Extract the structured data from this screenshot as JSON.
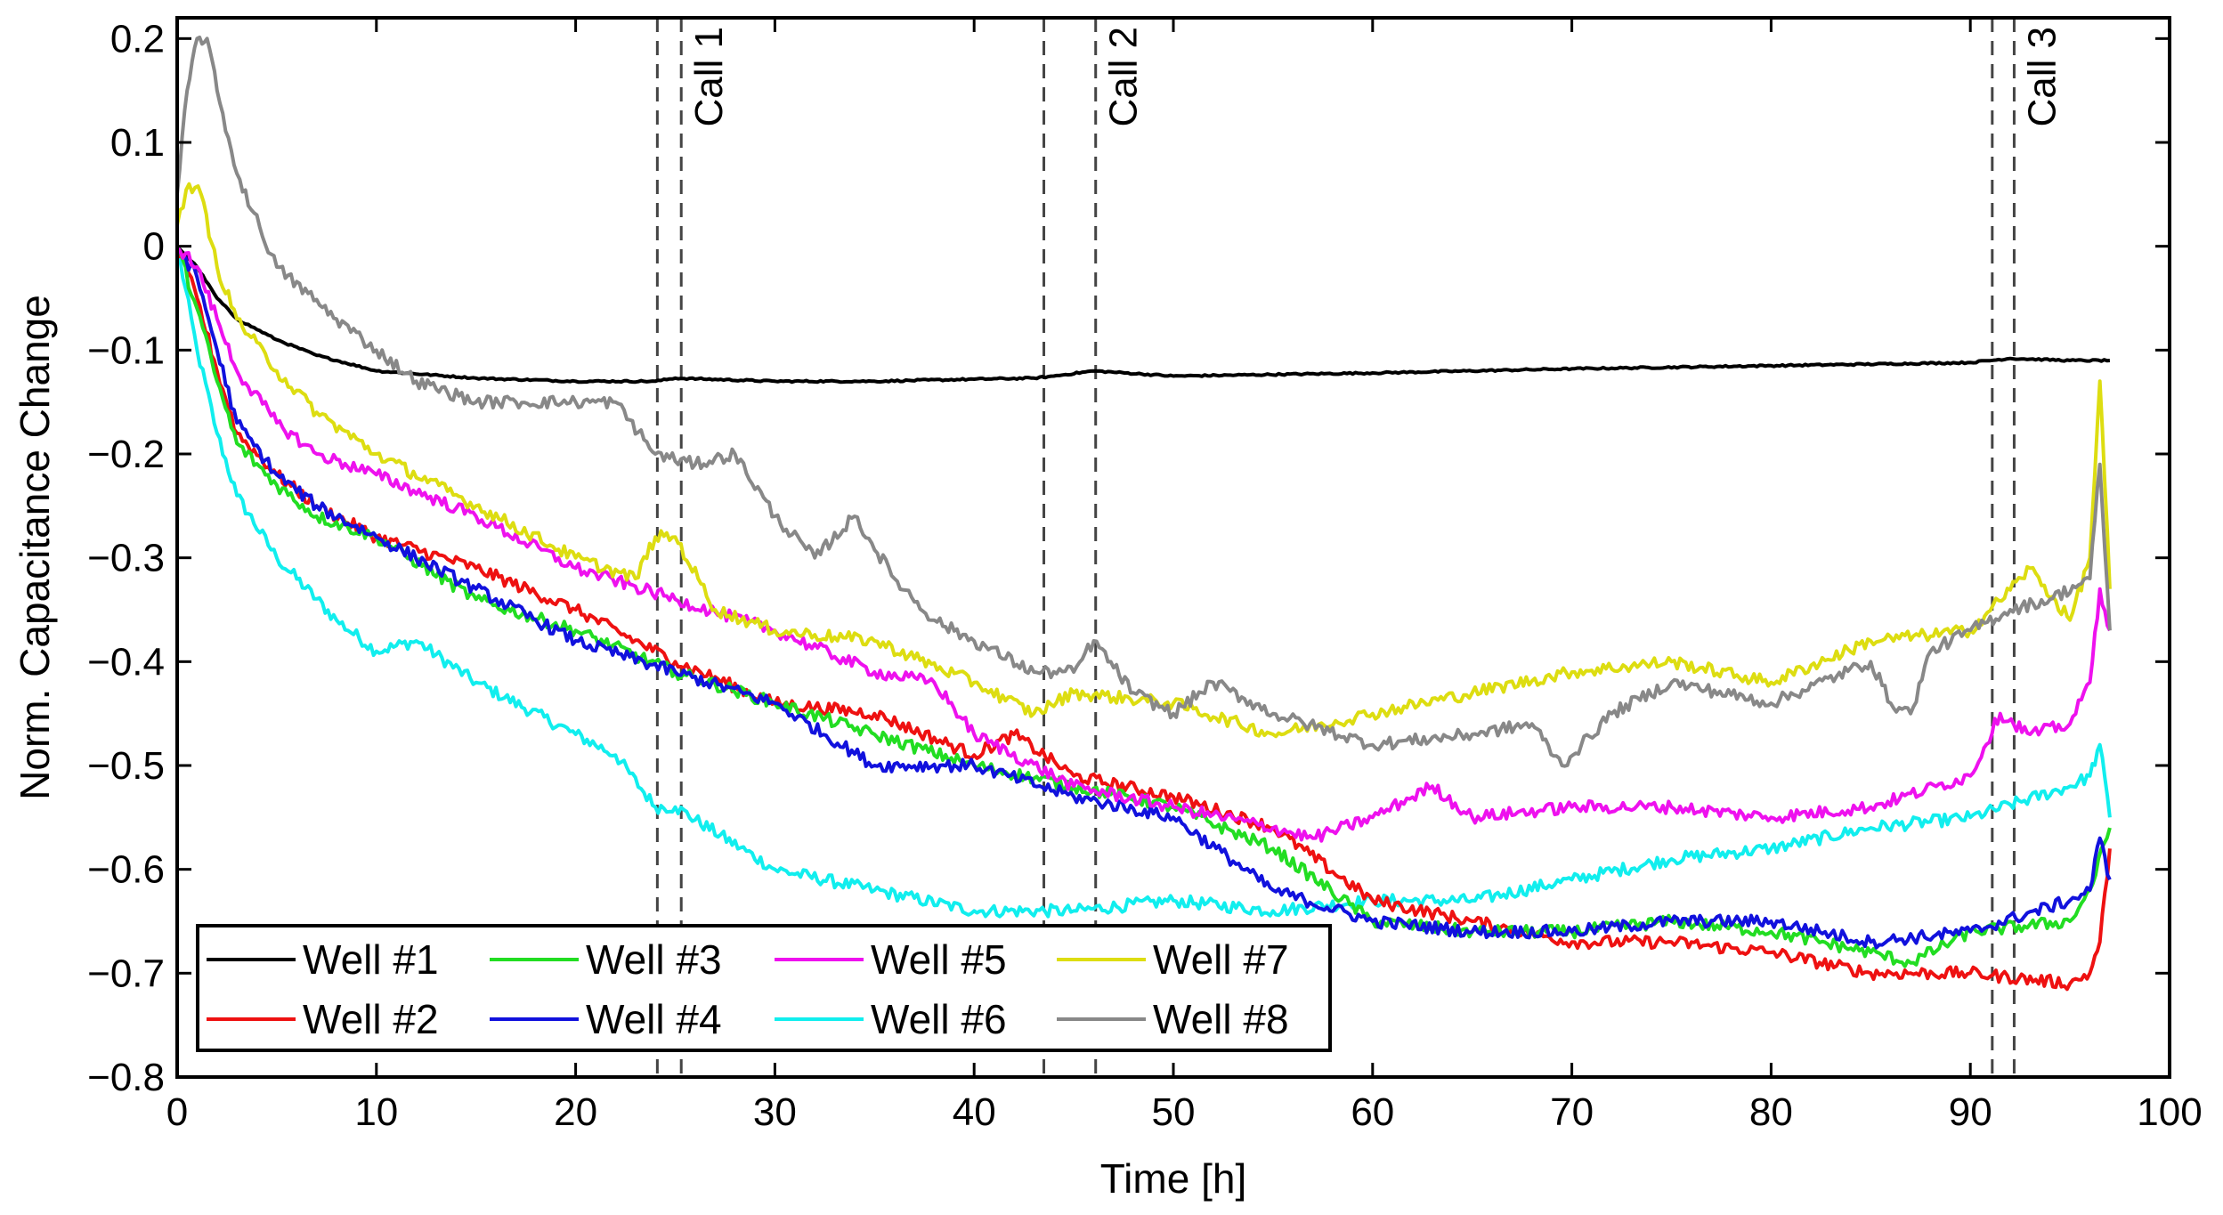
{
  "chart_data": {
    "type": "line",
    "title": "",
    "xlabel": "Time [h]",
    "ylabel": "Norm. Capacitance Change",
    "xlim": [
      0,
      100
    ],
    "ylim": [
      -0.8,
      0.22
    ],
    "xticks": [
      0,
      10,
      20,
      30,
      40,
      50,
      60,
      70,
      80,
      90,
      100
    ],
    "yticks": [
      0.2,
      0.1,
      0,
      -0.1,
      -0.2,
      -0.3,
      -0.4,
      -0.5,
      -0.6,
      -0.7,
      -0.8
    ],
    "xtick_labels": [
      "0",
      "10",
      "20",
      "30",
      "40",
      "50",
      "60",
      "70",
      "80",
      "90",
      "100"
    ],
    "ytick_labels": [
      "0.2",
      "0.1",
      "0",
      "−0.1",
      "−0.2",
      "−0.3",
      "−0.4",
      "−0.5",
      "−0.6",
      "−0.7",
      "−0.8"
    ],
    "grid": false,
    "legend_position": "bottom-left",
    "legend_columns": 4,
    "calls": [
      {
        "label": "Call 1",
        "lines": [
          24.1,
          25.3
        ]
      },
      {
        "label": "Call 2",
        "lines": [
          43.5,
          46.1
        ]
      },
      {
        "label": "Call 3",
        "lines": [
          91.1,
          92.2
        ]
      }
    ],
    "series": [
      {
        "name": "Well #1",
        "color": "#000000",
        "x": [
          0,
          1,
          2,
          3,
          5,
          7,
          10,
          15,
          20,
          24,
          25,
          30,
          35,
          40,
          43,
          44,
          46,
          50,
          60,
          70,
          80,
          90,
          92,
          95,
          97
        ],
        "y": [
          0,
          -0.02,
          -0.05,
          -0.07,
          -0.09,
          -0.105,
          -0.12,
          -0.127,
          -0.13,
          -0.13,
          -0.127,
          -0.13,
          -0.13,
          -0.128,
          -0.127,
          -0.125,
          -0.12,
          -0.125,
          -0.122,
          -0.118,
          -0.115,
          -0.112,
          -0.108,
          -0.11,
          -0.11
        ]
      },
      {
        "name": "Well #2",
        "color": "#ee1111",
        "x": [
          0,
          1,
          2,
          3,
          5,
          7,
          10,
          15,
          20,
          25,
          30,
          35,
          40,
          42,
          45,
          50,
          55,
          60,
          65,
          70,
          75,
          80,
          85,
          90,
          95,
          96,
          96.5,
          97
        ],
        "y": [
          0,
          -0.05,
          -0.12,
          -0.18,
          -0.22,
          -0.25,
          -0.28,
          -0.31,
          -0.35,
          -0.4,
          -0.44,
          -0.45,
          -0.49,
          -0.47,
          -0.51,
          -0.53,
          -0.56,
          -0.63,
          -0.65,
          -0.67,
          -0.67,
          -0.68,
          -0.7,
          -0.7,
          -0.71,
          -0.7,
          -0.67,
          -0.58
        ]
      },
      {
        "name": "Well #3",
        "color": "#22dd22",
        "x": [
          0,
          1,
          2,
          3,
          5,
          7,
          10,
          15,
          20,
          25,
          30,
          35,
          40,
          45,
          50,
          55,
          60,
          65,
          70,
          75,
          80,
          85,
          87,
          90,
          95,
          96,
          97
        ],
        "y": [
          0,
          -0.06,
          -0.13,
          -0.19,
          -0.23,
          -0.26,
          -0.28,
          -0.34,
          -0.37,
          -0.41,
          -0.44,
          -0.47,
          -0.5,
          -0.52,
          -0.54,
          -0.58,
          -0.65,
          -0.66,
          -0.66,
          -0.65,
          -0.66,
          -0.68,
          -0.69,
          -0.66,
          -0.65,
          -0.62,
          -0.56
        ]
      },
      {
        "name": "Well #4",
        "color": "#1111dd",
        "x": [
          0,
          1,
          2,
          3,
          5,
          7,
          10,
          15,
          20,
          25,
          30,
          35,
          40,
          45,
          50,
          55,
          60,
          65,
          70,
          75,
          80,
          85,
          90,
          95,
          96,
          96.5,
          97
        ],
        "y": [
          0,
          -0.03,
          -0.1,
          -0.17,
          -0.22,
          -0.25,
          -0.28,
          -0.33,
          -0.38,
          -0.41,
          -0.44,
          -0.5,
          -0.5,
          -0.53,
          -0.55,
          -0.62,
          -0.65,
          -0.66,
          -0.66,
          -0.65,
          -0.65,
          -0.67,
          -0.66,
          -0.63,
          -0.62,
          -0.57,
          -0.61
        ]
      },
      {
        "name": "Well #5",
        "color": "#ee11ee",
        "x": [
          0,
          1,
          2,
          3,
          5,
          7,
          10,
          15,
          20,
          25,
          30,
          35,
          38,
          40,
          45,
          50,
          55,
          57,
          60,
          63,
          65,
          70,
          75,
          80,
          85,
          90,
          91.5,
          93,
          95,
          96,
          96.5,
          97
        ],
        "y": [
          0,
          -0.02,
          -0.07,
          -0.12,
          -0.17,
          -0.2,
          -0.22,
          -0.26,
          -0.31,
          -0.34,
          -0.37,
          -0.41,
          -0.42,
          -0.47,
          -0.52,
          -0.54,
          -0.56,
          -0.57,
          -0.55,
          -0.52,
          -0.55,
          -0.54,
          -0.54,
          -0.55,
          -0.54,
          -0.51,
          -0.45,
          -0.47,
          -0.46,
          -0.42,
          -0.33,
          -0.37
        ]
      },
      {
        "name": "Well #6",
        "color": "#11eeee",
        "x": [
          0,
          1,
          2,
          3,
          5,
          8,
          10,
          12,
          15,
          20,
          22,
          24,
          25,
          30,
          35,
          40,
          45,
          50,
          55,
          60,
          65,
          70,
          75,
          80,
          85,
          90,
          95,
          96,
          96.5,
          97
        ],
        "y": [
          0,
          -0.1,
          -0.18,
          -0.24,
          -0.3,
          -0.36,
          -0.39,
          -0.38,
          -0.42,
          -0.47,
          -0.49,
          -0.54,
          -0.54,
          -0.6,
          -0.62,
          -0.64,
          -0.64,
          -0.63,
          -0.64,
          -0.63,
          -0.63,
          -0.61,
          -0.59,
          -0.58,
          -0.56,
          -0.55,
          -0.52,
          -0.51,
          -0.48,
          -0.55
        ]
      },
      {
        "name": "Well #7",
        "color": "#dddd11",
        "x": [
          0,
          0.6,
          1.2,
          2,
          3,
          5,
          7,
          10,
          15,
          20,
          23,
          24,
          25,
          27,
          30,
          35,
          40,
          43,
          45,
          50,
          55,
          60,
          65,
          70,
          75,
          80,
          85,
          90,
          93,
          95,
          96,
          96.5,
          97
        ],
        "y": [
          0.02,
          0.06,
          0.05,
          -0.02,
          -0.07,
          -0.12,
          -0.16,
          -0.2,
          -0.25,
          -0.3,
          -0.32,
          -0.28,
          -0.28,
          -0.35,
          -0.37,
          -0.38,
          -0.42,
          -0.45,
          -0.43,
          -0.44,
          -0.47,
          -0.45,
          -0.43,
          -0.41,
          -0.4,
          -0.42,
          -0.38,
          -0.37,
          -0.31,
          -0.36,
          -0.3,
          -0.13,
          -0.33
        ]
      },
      {
        "name": "Well #8",
        "color": "#888888",
        "x": [
          0,
          0.5,
          1,
          1.5,
          2,
          3,
          5,
          8,
          10,
          12,
          15,
          17,
          20,
          22,
          24,
          26,
          28,
          30,
          32,
          34,
          36,
          38,
          40,
          43,
          45,
          46,
          48,
          50,
          52,
          55,
          60,
          65,
          68,
          69.5,
          72,
          75,
          80,
          85,
          86,
          87,
          88,
          90,
          92,
          94,
          96,
          96.5,
          97
        ],
        "y": [
          0.05,
          0.15,
          0.2,
          0.2,
          0.15,
          0.07,
          -0.02,
          -0.07,
          -0.1,
          -0.13,
          -0.15,
          -0.15,
          -0.15,
          -0.15,
          -0.2,
          -0.21,
          -0.2,
          -0.26,
          -0.3,
          -0.26,
          -0.32,
          -0.36,
          -0.38,
          -0.41,
          -0.41,
          -0.38,
          -0.43,
          -0.45,
          -0.42,
          -0.45,
          -0.48,
          -0.47,
          -0.46,
          -0.5,
          -0.45,
          -0.42,
          -0.44,
          -0.4,
          -0.44,
          -0.45,
          -0.39,
          -0.37,
          -0.35,
          -0.34,
          -0.32,
          -0.21,
          -0.37
        ]
      }
    ]
  }
}
